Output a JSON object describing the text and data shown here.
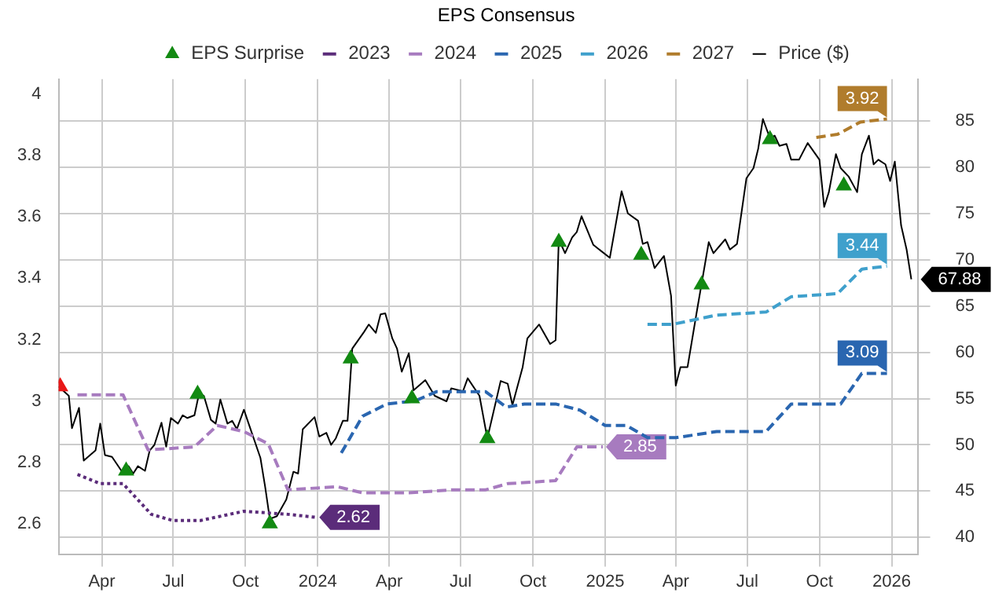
{
  "chart_data": {
    "type": "line",
    "legend_title": "EPS Consensus",
    "legend": "top",
    "grid": true,
    "xlim": [
      "2023-02-05",
      "2026-02-03"
    ],
    "xticks": [
      {
        "value": "2023-04-01",
        "label": "Apr"
      },
      {
        "value": "2023-07-01",
        "label": "Jul"
      },
      {
        "value": "2023-10-01",
        "label": "Oct"
      },
      {
        "value": "2024-01-01",
        "label": "2024"
      },
      {
        "value": "2024-04-01",
        "label": "Apr"
      },
      {
        "value": "2024-07-01",
        "label": "Jul"
      },
      {
        "value": "2024-10-01",
        "label": "Oct"
      },
      {
        "value": "2025-01-01",
        "label": "2025"
      },
      {
        "value": "2025-04-01",
        "label": "Apr"
      },
      {
        "value": "2025-07-01",
        "label": "Jul"
      },
      {
        "value": "2025-10-01",
        "label": "Oct"
      },
      {
        "value": "2026-01-01",
        "label": "2026"
      }
    ],
    "ylim": [
      2.5,
      4.05
    ],
    "yticks": [
      2.6,
      2.8,
      3,
      3.2,
      3.4,
      3.6,
      3.8,
      4
    ],
    "y2lim": [
      38.2,
      89.5
    ],
    "y2ticks": [
      40,
      45,
      50,
      55,
      60,
      65,
      70,
      75,
      80,
      85
    ],
    "series": [
      {
        "name": "EPS Surprise",
        "type": "scatter",
        "axis": "y2",
        "marker": "triangle",
        "color": "#138a13",
        "x": [
          "2023-05-02",
          "2023-08-01",
          "2023-11-01",
          "2024-02-12",
          "2024-04-30",
          "2024-08-04",
          "2024-11-03",
          "2025-02-16",
          "2025-05-04",
          "2025-07-30",
          "2025-11-01"
        ],
        "values": [
          47.2,
          55.5,
          41.5,
          59.3,
          55,
          50.7,
          71.9,
          70.5,
          67.3,
          83,
          78
        ]
      },
      {
        "type": "scatter",
        "axis": "y2",
        "marker": "triangle",
        "color": "#e81818",
        "x": [
          "2023-02-07"
        ],
        "values": [
          56.3
        ]
      },
      {
        "name": "2023",
        "line_style": "dotted",
        "color": "#5b2c7a",
        "x": [
          "2023-03-01",
          "2023-03-30",
          "2023-04-28",
          "2023-06-03",
          "2023-06-30",
          "2023-08-05",
          "2023-09-29",
          "2023-11-24",
          "2023-12-30"
        ],
        "values": [
          2.76,
          2.73,
          2.73,
          2.63,
          2.61,
          2.61,
          2.64,
          2.63,
          2.62
        ],
        "value_labels": [
          null,
          null,
          null,
          null,
          null,
          null,
          null,
          null,
          "2.62"
        ]
      },
      {
        "name": "2024",
        "line_style": "dashed",
        "color": "#a77bbf",
        "x": [
          "2023-03-01",
          "2023-04-28",
          "2023-05-30",
          "2023-07-28",
          "2023-08-26",
          "2023-09-29",
          "2023-10-30",
          "2023-11-24",
          "2024-01-26",
          "2024-02-27",
          "2024-04-26",
          "2024-06-21",
          "2024-08-02",
          "2024-08-30",
          "2024-10-30",
          "2024-11-26",
          "2024-12-29"
        ],
        "values": [
          3.02,
          3.02,
          2.84,
          2.85,
          2.92,
          2.9,
          2.86,
          2.71,
          2.72,
          2.7,
          2.7,
          2.71,
          2.71,
          2.73,
          2.74,
          2.85,
          2.85
        ],
        "value_labels": [
          null,
          null,
          null,
          null,
          null,
          null,
          null,
          null,
          null,
          null,
          null,
          null,
          null,
          null,
          null,
          null,
          "2.85"
        ]
      },
      {
        "name": "2025",
        "line_style": "dashed",
        "color": "#2a66b0",
        "x": [
          "2024-01-31",
          "2024-02-27",
          "2024-03-29",
          "2024-05-04",
          "2024-05-31",
          "2024-08-02",
          "2024-08-28",
          "2024-09-20",
          "2024-10-30",
          "2024-11-30",
          "2025-01-01",
          "2025-01-28",
          "2025-02-24",
          "2025-04-01",
          "2025-05-23",
          "2025-07-25",
          "2025-08-26",
          "2025-10-28",
          "2025-11-24",
          "2025-12-26"
        ],
        "values": [
          2.83,
          2.95,
          2.99,
          3,
          3.03,
          3.03,
          2.98,
          2.99,
          2.99,
          2.97,
          2.92,
          2.92,
          2.88,
          2.88,
          2.9,
          2.9,
          2.99,
          2.99,
          3.09,
          3.09
        ],
        "value_labels": [
          null,
          null,
          null,
          null,
          null,
          null,
          null,
          null,
          null,
          null,
          null,
          null,
          null,
          null,
          null,
          null,
          null,
          null,
          null,
          "3.09"
        ]
      },
      {
        "name": "2026",
        "line_style": "dashed",
        "color": "#3fa0cc",
        "x": [
          "2025-02-24",
          "2025-03-28",
          "2025-05-23",
          "2025-07-25",
          "2025-08-26",
          "2025-10-24",
          "2025-11-24",
          "2025-12-26"
        ],
        "values": [
          3.25,
          3.25,
          3.28,
          3.29,
          3.34,
          3.35,
          3.43,
          3.44
        ],
        "value_labels": [
          null,
          null,
          null,
          null,
          null,
          null,
          null,
          "3.44"
        ]
      },
      {
        "name": "2027",
        "line_style": "dashed",
        "color": "#b07c2c",
        "x": [
          "2025-09-27",
          "2025-10-24",
          "2025-11-22",
          "2025-12-26"
        ],
        "values": [
          3.86,
          3.87,
          3.91,
          3.92
        ],
        "value_labels": [
          null,
          null,
          null,
          "3.92"
        ]
      },
      {
        "name": "Price ($)",
        "line_style": "solid",
        "axis": "y2",
        "color": "#000000",
        "x": [
          "2023-02-05",
          "2023-02-18",
          "2023-02-22",
          "2023-03-03",
          "2023-03-09",
          "2023-03-24",
          "2023-03-30",
          "2023-04-05",
          "2023-04-14",
          "2023-04-26",
          "2023-05-05",
          "2023-05-11",
          "2023-05-17",
          "2023-05-26",
          "2023-06-01",
          "2023-06-07",
          "2023-06-16",
          "2023-06-22",
          "2023-06-28",
          "2023-07-07",
          "2023-07-13",
          "2023-07-19",
          "2023-07-28",
          "2023-08-03",
          "2023-08-09",
          "2023-08-18",
          "2023-08-24",
          "2023-08-30",
          "2023-09-08",
          "2023-09-14",
          "2023-09-20",
          "2023-09-29",
          "2023-10-05",
          "2023-10-20",
          "2023-10-26",
          "2023-11-01",
          "2023-11-10",
          "2023-11-22",
          "2023-12-01",
          "2023-12-07",
          "2023-12-13",
          "2023-12-28",
          "2024-01-03",
          "2024-01-12",
          "2024-01-18",
          "2024-01-24",
          "2024-02-02",
          "2024-02-08",
          "2024-02-14",
          "2024-02-29",
          "2024-03-06",
          "2024-03-15",
          "2024-03-21",
          "2024-03-27",
          "2024-04-05",
          "2024-04-11",
          "2024-04-17",
          "2024-04-26",
          "2024-05-02",
          "2024-05-17",
          "2024-05-29",
          "2024-06-13",
          "2024-06-19",
          "2024-07-04",
          "2024-07-10",
          "2024-07-25",
          "2024-08-04",
          "2024-08-21",
          "2024-08-30",
          "2024-09-05",
          "2024-09-18",
          "2024-09-24",
          "2024-10-09",
          "2024-10-23",
          "2024-10-30",
          "2024-11-03",
          "2024-11-11",
          "2024-11-20",
          "2024-11-26",
          "2024-12-02",
          "2024-12-17",
          "2025-01-07",
          "2025-01-22",
          "2025-01-30",
          "2025-02-12",
          "2025-02-18",
          "2025-02-24",
          "2025-03-05",
          "2025-03-17",
          "2025-03-26",
          "2025-04-01",
          "2025-04-07",
          "2025-04-16",
          "2025-04-28",
          "2025-05-13",
          "2025-05-19",
          "2025-06-03",
          "2025-06-09",
          "2025-06-18",
          "2025-06-30",
          "2025-07-09",
          "2025-07-15",
          "2025-07-21",
          "2025-07-30",
          "2025-08-05",
          "2025-08-11",
          "2025-08-20",
          "2025-08-26",
          "2025-09-05",
          "2025-09-16",
          "2025-10-01",
          "2025-10-07",
          "2025-10-13",
          "2025-10-22",
          "2025-10-28",
          "2025-11-07",
          "2025-11-18",
          "2025-11-24",
          "2025-12-03",
          "2025-12-09",
          "2025-12-15",
          "2025-12-24",
          "2025-12-30",
          "2026-01-05",
          "2026-01-13",
          "2026-01-20",
          "2026-01-26"
        ],
        "values": [
          56.3,
          55.3,
          51.8,
          54,
          48.3,
          49.4,
          52.3,
          48.9,
          48.7,
          47.2,
          47.7,
          46.9,
          47.7,
          47.2,
          49.4,
          50,
          52.4,
          49.8,
          52.9,
          52.3,
          53.2,
          52.9,
          53.2,
          55.6,
          55.3,
          52.7,
          52.3,
          54.9,
          52.3,
          52.6,
          51.7,
          53.8,
          52.3,
          48.6,
          45.5,
          42,
          42.3,
          44.1,
          47.1,
          46.9,
          51.7,
          53,
          50.9,
          51.3,
          50,
          50.7,
          52.6,
          52.6,
          60.4,
          62.2,
          63,
          62.1,
          64.1,
          64.2,
          61.5,
          60.4,
          57.9,
          59.9,
          55.9,
          57,
          55.3,
          54.7,
          56.1,
          55.8,
          57.2,
          55.3,
          50.7,
          56.9,
          56.6,
          54.3,
          58.4,
          61.5,
          63,
          60.9,
          61.3,
          72.2,
          70.7,
          72.4,
          73,
          74.7,
          71.6,
          70.2,
          77.4,
          75,
          74.2,
          71.7,
          71.9,
          69.1,
          70.4,
          66.1,
          56.4,
          58.4,
          58.4,
          64.5,
          71.9,
          70.7,
          72.2,
          71.1,
          71.7,
          78.8,
          79.9,
          82,
          85.2,
          83.1,
          83.4,
          82.3,
          82.5,
          80.8,
          80.8,
          82.6,
          80.8,
          75.7,
          77.3,
          81.4,
          79.9,
          79,
          77.3,
          81.4,
          83.4,
          80.3,
          80.8,
          80.3,
          78.5,
          80.6,
          73.7,
          71.1,
          67.88
        ],
        "value_labels": [
          null,
          null,
          null,
          null,
          null,
          null,
          null,
          null,
          null,
          null,
          null,
          null,
          null,
          null,
          null,
          null,
          null,
          null,
          null,
          null,
          null,
          null,
          null,
          null,
          null,
          null,
          null,
          null,
          null,
          null,
          null,
          null,
          null,
          null,
          null,
          null,
          null,
          null,
          null,
          null,
          null,
          null,
          null,
          null,
          null,
          null,
          null,
          null,
          null,
          null,
          null,
          null,
          null,
          null,
          null,
          null,
          null,
          null,
          null,
          null,
          null,
          null,
          null,
          null,
          null,
          null,
          null,
          null,
          null,
          null,
          null,
          null,
          null,
          null,
          null,
          null,
          null,
          null,
          null,
          null,
          null,
          null,
          null,
          null,
          null,
          null,
          null,
          null,
          null,
          null,
          null,
          null,
          null,
          null,
          null,
          null,
          null,
          null,
          null,
          null,
          null,
          null,
          null,
          null,
          null,
          null,
          null,
          null,
          null,
          null,
          null,
          null,
          null,
          null,
          null,
          null,
          null,
          null,
          null,
          null,
          null,
          null,
          null,
          null,
          null,
          null,
          "67.88"
        ]
      }
    ]
  }
}
